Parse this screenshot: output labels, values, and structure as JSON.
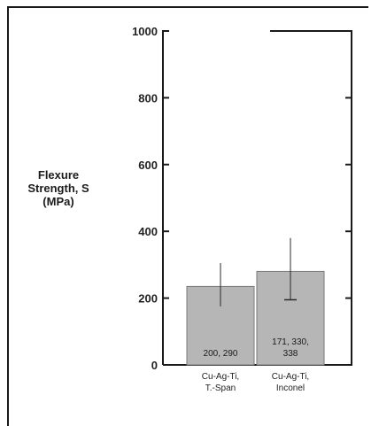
{
  "chart_data": {
    "type": "bar",
    "title": "",
    "xlabel": "",
    "ylabel": [
      "Flexure",
      "Strength, S",
      "(MPa)"
    ],
    "ylim": [
      0,
      1000
    ],
    "yticks": [
      0,
      200,
      400,
      600,
      800,
      1000
    ],
    "categories": [
      [
        "Cu-Ag-Ti,",
        "T.-Span"
      ],
      [
        "Cu-Ag-Ti,",
        "Inconel"
      ]
    ],
    "values": [
      235,
      280
    ],
    "error_low": [
      175,
      195
    ],
    "error_high": [
      305,
      380
    ],
    "data_labels": [
      [
        "200, 290"
      ],
      [
        "171, 330,",
        "338"
      ]
    ],
    "bar_color": "#b6b6b6",
    "grid": false,
    "legend": "none"
  }
}
